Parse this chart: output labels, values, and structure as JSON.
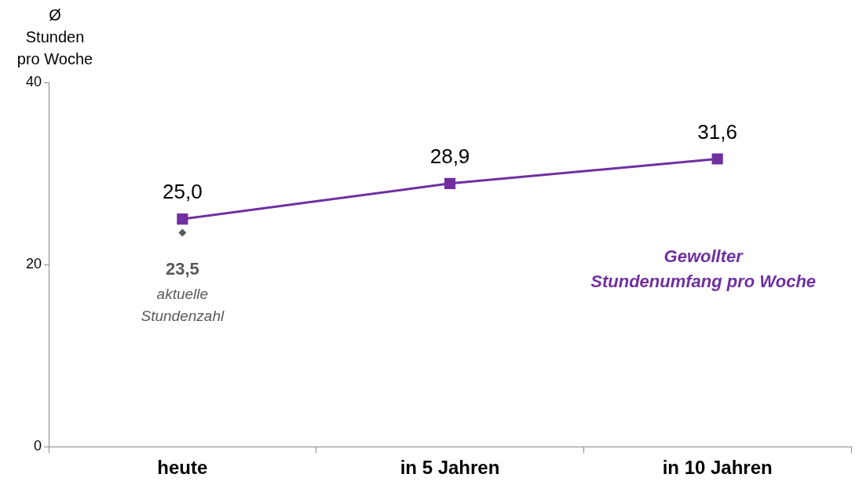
{
  "chart_data": {
    "type": "line",
    "ylabel": "Ø Stunden pro Woche",
    "categories": [
      "heute",
      "in 5 Jahren",
      "in 10 Jahren"
    ],
    "ylim": [
      0,
      40
    ],
    "yticks": [
      0,
      20,
      40
    ],
    "series": [
      {
        "name": "Gewollter Stundenumfang pro Woche",
        "color": "#7030a0",
        "marker": "square",
        "values": [
          25.0,
          28.9,
          31.6
        ],
        "value_labels": [
          "25,0",
          "28,9",
          "31,6"
        ]
      },
      {
        "name": "aktuelle Stundenzahl",
        "type": "scatter",
        "color": "#595959",
        "marker": "diamond",
        "values": [
          23.5,
          null,
          null
        ],
        "value_labels": [
          "23,5",
          null,
          null
        ]
      }
    ]
  }
}
